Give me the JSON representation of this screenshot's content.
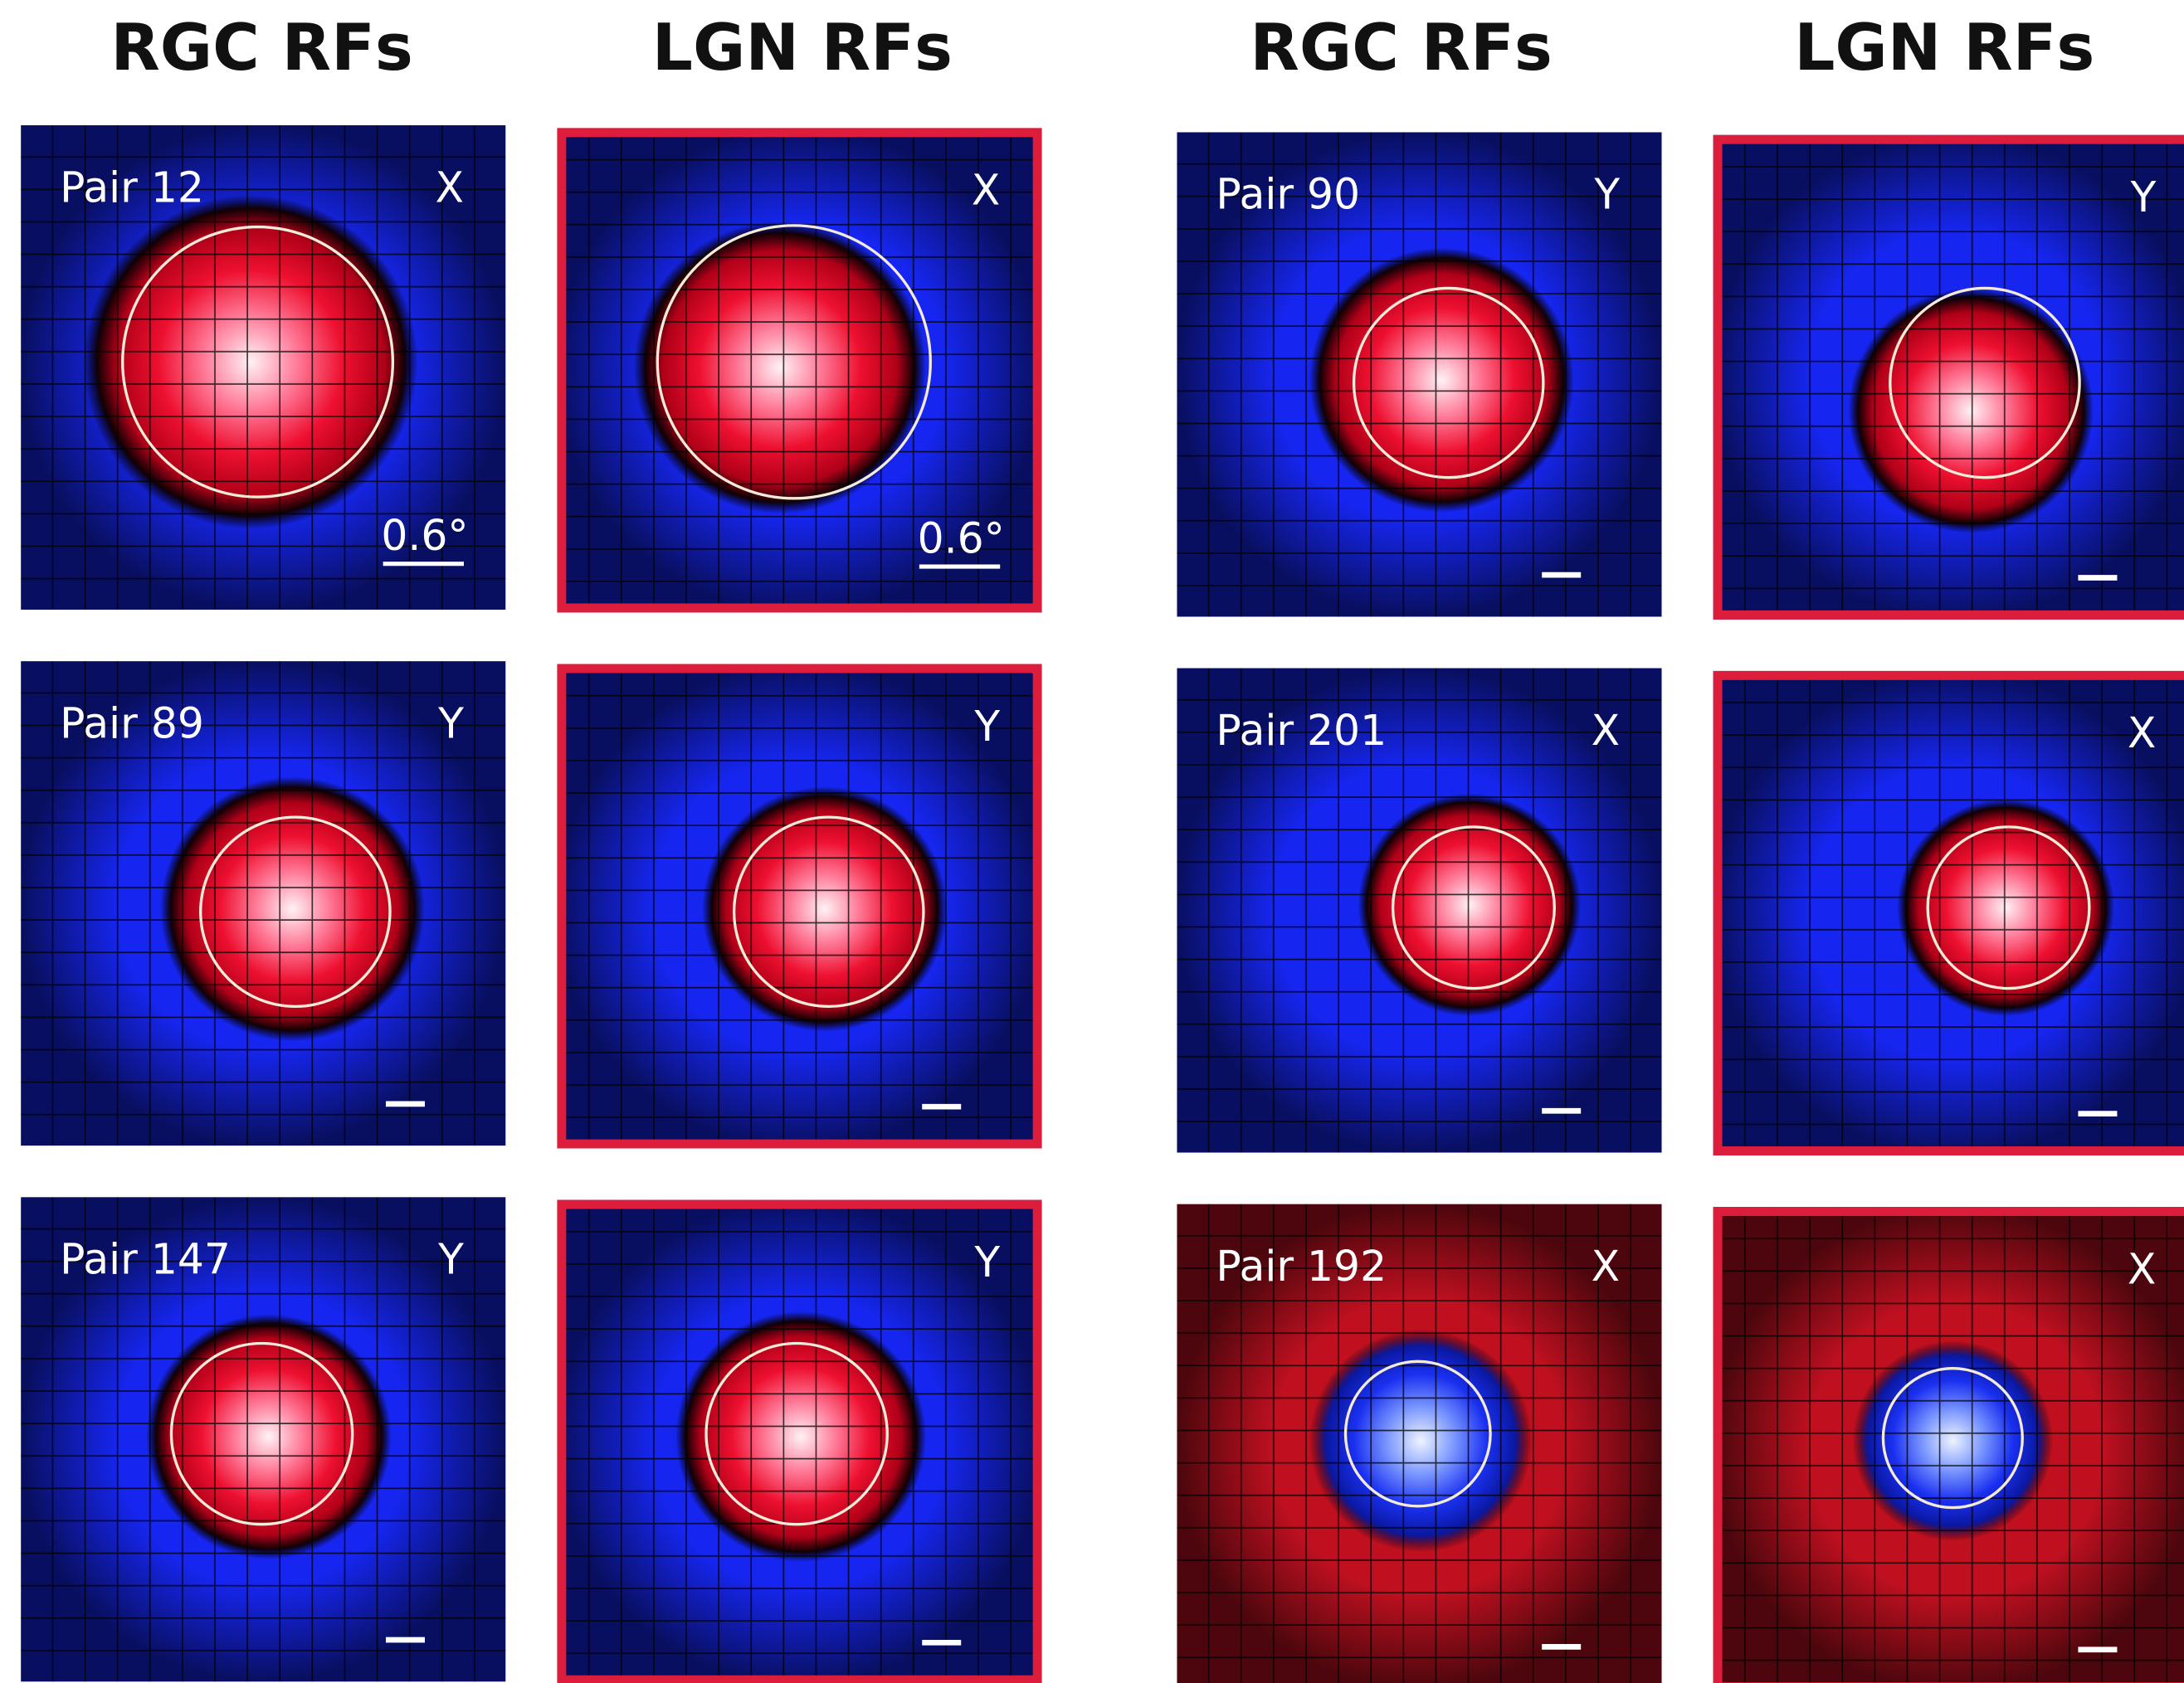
{
  "headers": [
    "RGC RFs",
    "LGN RFs",
    "RGC RFs",
    "LGN RFs"
  ],
  "panels": [
    [
      {
        "label": "Pair 12",
        "type": "X",
        "scale": "0.6°"
      },
      {
        "type": "X",
        "scale": "0.6°"
      },
      {
        "label": "Pair 90",
        "type": "Y"
      },
      {
        "type": "Y"
      }
    ],
    [
      {
        "label": "Pair 89",
        "type": "Y"
      },
      {
        "type": "Y"
      },
      {
        "label": "Pair 201",
        "type": "X"
      },
      {
        "type": "X"
      }
    ],
    [
      {
        "label": "Pair 147",
        "type": "Y"
      },
      {
        "type": "Y"
      },
      {
        "label": "Pair 192",
        "type": "X"
      },
      {
        "type": "X"
      }
    ]
  ]
}
